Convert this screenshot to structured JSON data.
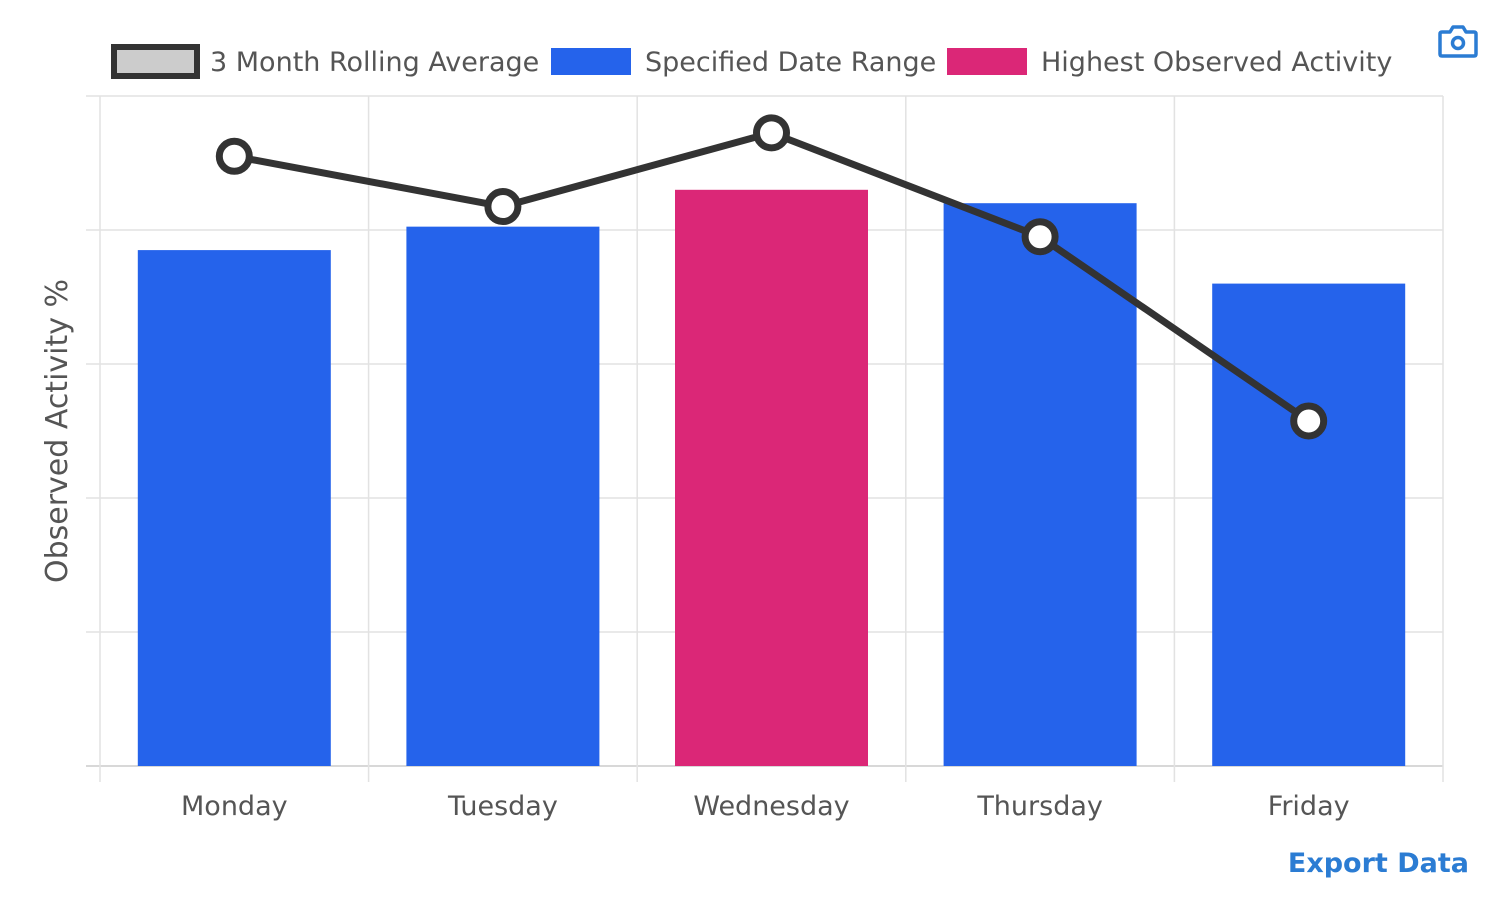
{
  "legend": {
    "rolling": "3 Month Rolling Average",
    "specified": "Specified Date Range",
    "highest": "Highest Observed Activity"
  },
  "actions": {
    "export_label": "Export Data",
    "camera_icon": "camera-icon"
  },
  "colors": {
    "bar": "#2563eb",
    "highlight": "#db2777",
    "line": "#333333",
    "rolling_swatch_fill": "#cccccc",
    "link": "#2b7cd3",
    "grid": "#e2e2e2"
  },
  "chart_data": {
    "type": "bar",
    "title": "",
    "xlabel": "",
    "ylabel": "Observed Activity %",
    "categories": [
      "Monday",
      "Tuesday",
      "Wednesday",
      "Thursday",
      "Friday"
    ],
    "ylim": [
      0,
      100
    ],
    "grid": true,
    "legend_position": "top",
    "series": [
      {
        "name": "Specified Date Range",
        "type": "bar",
        "values": [
          77,
          80.5,
          86,
          84,
          72
        ],
        "highlight_index": 2,
        "highlight_name": "Highest Observed Activity"
      },
      {
        "name": "3 Month Rolling Average",
        "type": "line",
        "values": [
          91,
          83.5,
          94.5,
          79,
          51.5
        ]
      }
    ]
  }
}
